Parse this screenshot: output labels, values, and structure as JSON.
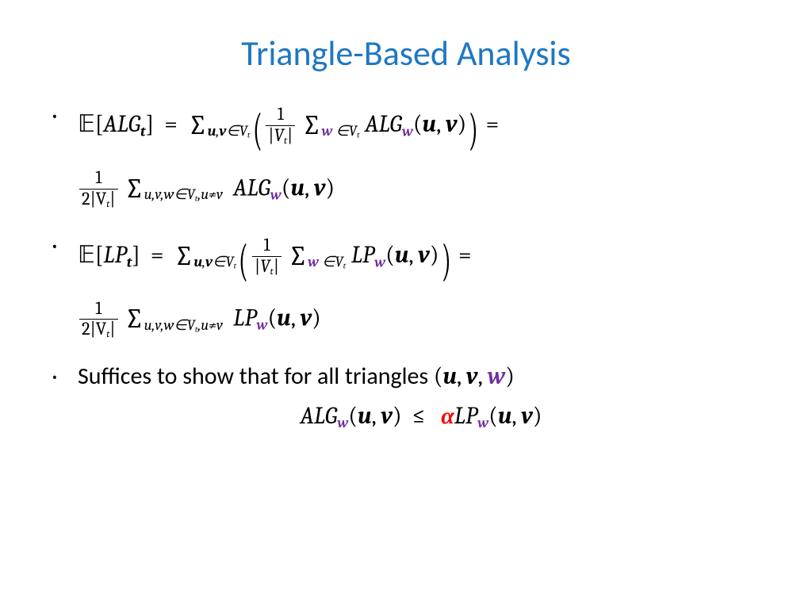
{
  "title": {
    "text": "Triangle-Based Analysis",
    "color": "#1f78c1",
    "fontsize_pt": 44
  },
  "colors": {
    "title": "#1f78c1",
    "accent_purple": "#7030a0",
    "accent_red": "#ff0000",
    "text": "#000000",
    "background": "#ffffff"
  },
  "symbols": {
    "expectation": "𝔼",
    "ALG": "ALG",
    "LP": "LP",
    "sum": "∑",
    "elem": "∈",
    "neq": "≠",
    "leq": "≤",
    "alpha": "α",
    "u": "u",
    "v": "v",
    "w": "w",
    "t": "t",
    "Vt": "V",
    "one": "1",
    "two": "2"
  },
  "bullets": {
    "b3_text": "Suffices to show that for all triangles ",
    "triangle_open": "(",
    "triangle_close": ")",
    "comma": ", "
  }
}
